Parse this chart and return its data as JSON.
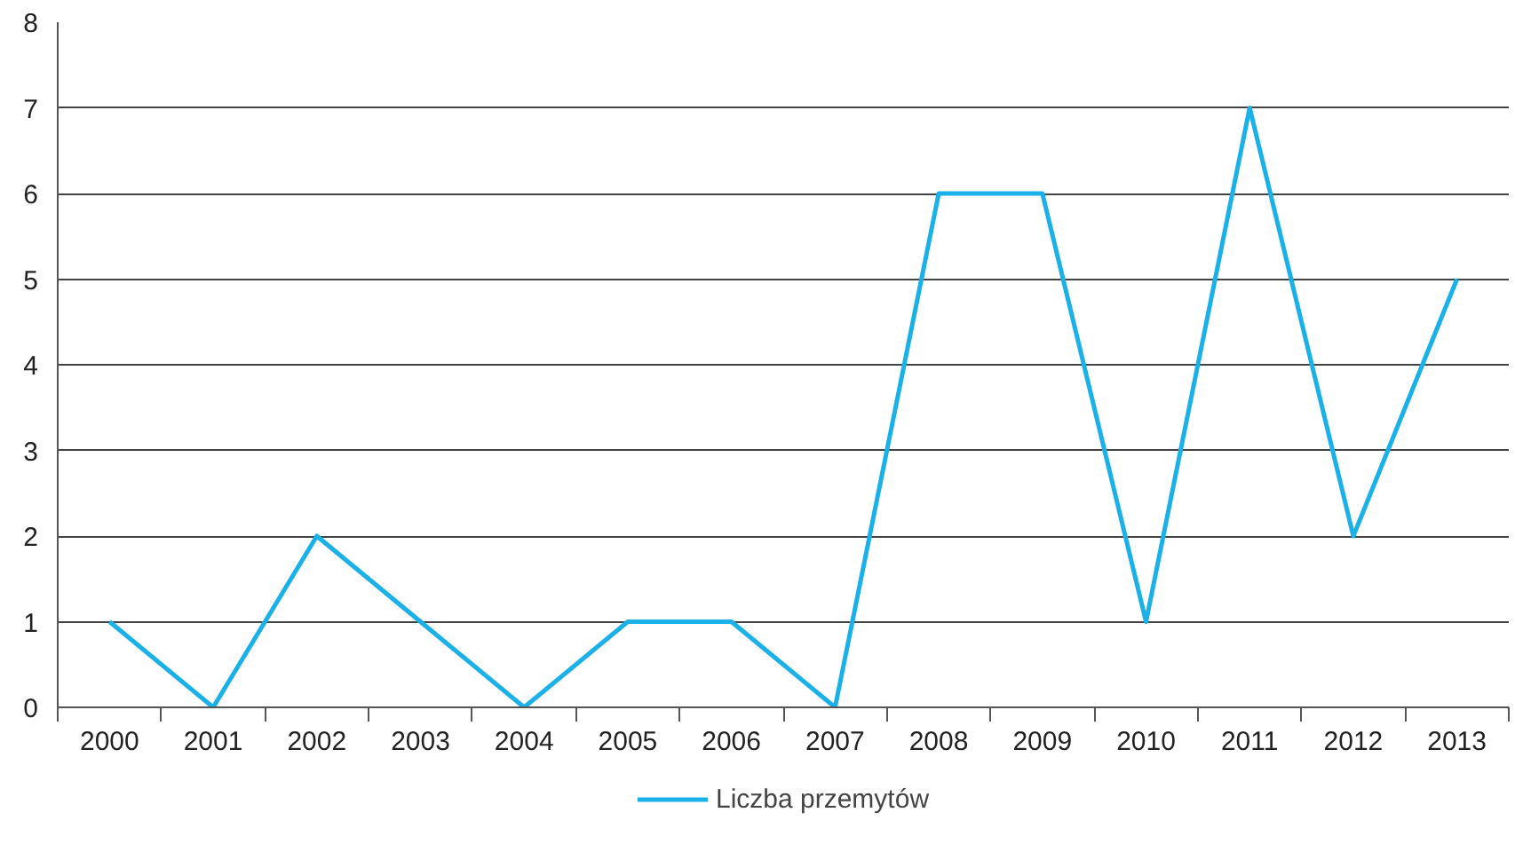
{
  "chart_data": {
    "type": "line",
    "categories": [
      "2000",
      "2001",
      "2002",
      "2003",
      "2004",
      "2005",
      "2006",
      "2007",
      "2008",
      "2009",
      "2010",
      "2011",
      "2012",
      "2013"
    ],
    "series": [
      {
        "name": "Liczba przemytów",
        "color": "#1ab0e8",
        "values": [
          1,
          0,
          2,
          1,
          0,
          1,
          1,
          0,
          6,
          6,
          1,
          7,
          2,
          5
        ]
      }
    ],
    "ylim": [
      0,
      8
    ],
    "yticks": [
      0,
      1,
      2,
      3,
      4,
      5,
      6,
      7,
      8
    ],
    "grid": "y",
    "legend": "bottom",
    "marker": "none",
    "line_style": "solid"
  }
}
